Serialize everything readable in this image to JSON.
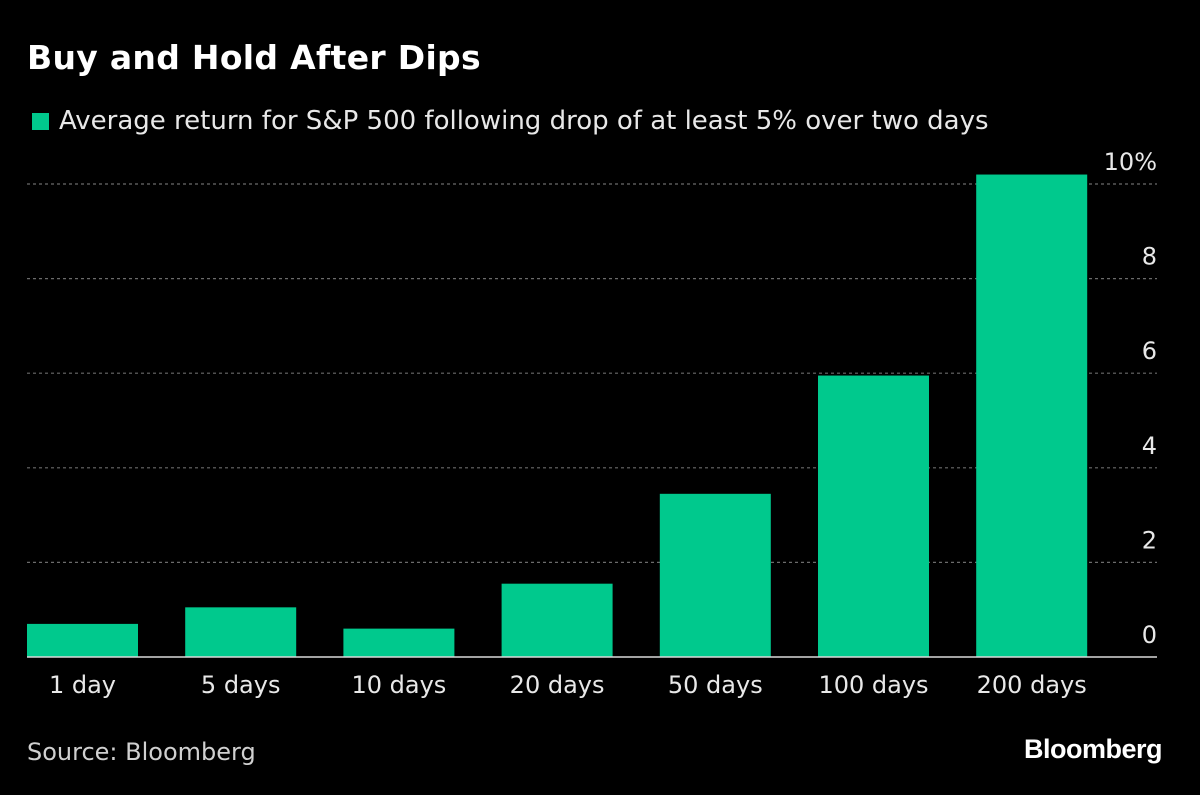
{
  "title": "Buy and Hold After Dips",
  "source": "Source: Bloomberg",
  "brand": "Bloomberg",
  "colors": {
    "bar": "#00c98d",
    "background": "#000000",
    "grid": "#6b6b6b",
    "text": "#e8e8e8"
  },
  "chart_data": {
    "type": "bar",
    "categories": [
      "1 day",
      "5 days",
      "10 days",
      "20 days",
      "50 days",
      "100 days",
      "200 days"
    ],
    "series": [
      {
        "name": "Average return for S&P 500 following drop of at least 5% over two days",
        "values": [
          0.7,
          1.05,
          0.6,
          1.55,
          3.45,
          5.95,
          10.2
        ]
      }
    ],
    "ylim": [
      0,
      10
    ],
    "yticks": [
      0,
      2,
      4,
      6,
      8,
      10
    ],
    "ytick_labels": [
      "0",
      "2",
      "4",
      "6",
      "8",
      "10%"
    ],
    "grid": true,
    "yaxis_position": "right",
    "legend_position": "top-left"
  }
}
